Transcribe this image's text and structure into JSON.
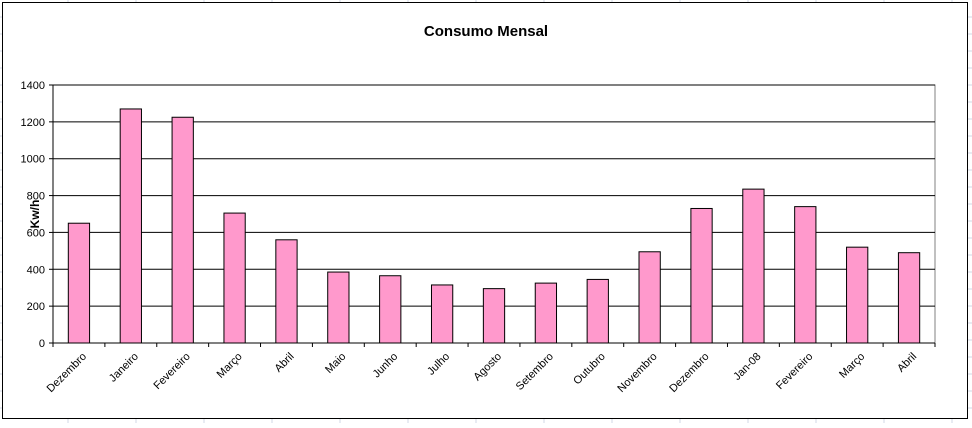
{
  "chart_data": {
    "type": "bar",
    "title": "Consumo Mensal",
    "ylabel": "Kw/h",
    "xlabel": "",
    "ylim": [
      0,
      1400
    ],
    "yticks": [
      0,
      200,
      400,
      600,
      800,
      1000,
      1200,
      1400
    ],
    "grid": true,
    "legend": "none",
    "categories": [
      "Dezembro",
      "Janeiro",
      "Fevereiro",
      "Março",
      "Abril",
      "Maio",
      "Junho",
      "Julho",
      "Agosto",
      "Setembro",
      "Outubro",
      "Novembro",
      "Dezembro",
      "Jan-08",
      "Fevereiro",
      "Março",
      "Abril"
    ],
    "values": [
      650,
      1270,
      1225,
      705,
      560,
      385,
      365,
      315,
      295,
      325,
      345,
      495,
      730,
      835,
      740,
      520,
      490
    ],
    "bar_color": "#ff99cc",
    "bar_border_color": "#000000"
  }
}
